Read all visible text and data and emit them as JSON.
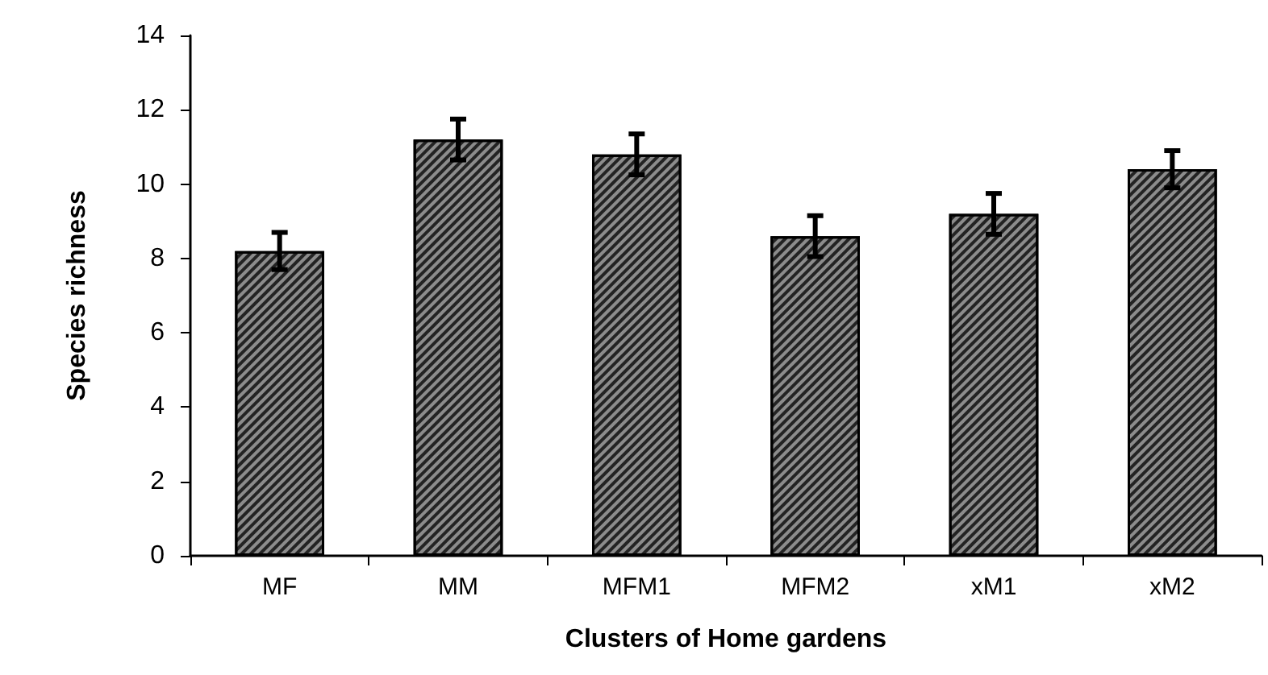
{
  "chart_data": {
    "type": "bar",
    "xlabel": "Clusters of Home gardens",
    "ylabel": "Species richness",
    "categories": [
      "MF",
      "MM",
      "MFM1",
      "MFM2",
      "xM1",
      "xM2"
    ],
    "series": [
      {
        "color": "#8c8c8c",
        "values": [
          8.2,
          11.2,
          10.8,
          8.6,
          9.2,
          10.4
        ],
        "errors": [
          0.5,
          0.55,
          0.55,
          0.55,
          0.55,
          0.5
        ]
      }
    ],
    "ylim": [
      0,
      14
    ],
    "yticks": [
      0,
      2,
      4,
      6,
      8,
      10,
      12,
      14
    ],
    "grid": false
  }
}
